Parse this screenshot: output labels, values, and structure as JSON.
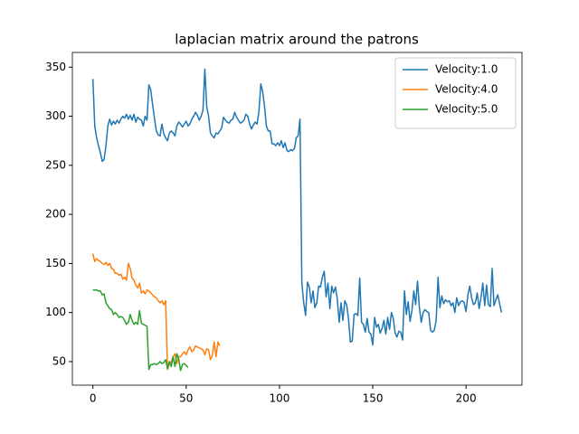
{
  "chart_data": {
    "type": "line",
    "title": "laplacian matrix around the patrons",
    "xlim": [
      -11,
      230
    ],
    "xticks": [
      0,
      50,
      100,
      150,
      200
    ],
    "ylim": [
      26,
      365
    ],
    "yticks": [
      50,
      100,
      150,
      200,
      250,
      300,
      350
    ],
    "legend": "upper right",
    "series": [
      {
        "name": "Velocity:1.0",
        "color": "#1f77b4",
        "x": [
          0,
          1,
          2,
          3,
          4,
          5,
          6,
          7,
          8,
          9,
          10,
          11,
          12,
          13,
          14,
          15,
          16,
          17,
          18,
          19,
          20,
          21,
          22,
          23,
          24,
          25,
          26,
          27,
          28,
          29,
          30,
          31,
          32,
          33,
          34,
          35,
          36,
          37,
          38,
          39,
          40,
          41,
          42,
          43,
          44,
          45,
          46,
          47,
          48,
          49,
          50,
          51,
          52,
          53,
          54,
          55,
          56,
          57,
          58,
          59,
          60,
          61,
          62,
          63,
          64,
          65,
          66,
          67,
          68,
          69,
          70,
          71,
          72,
          73,
          74,
          75,
          76,
          77,
          78,
          79,
          80,
          81,
          82,
          83,
          84,
          85,
          86,
          87,
          88,
          89,
          90,
          91,
          92,
          93,
          94,
          95,
          96,
          97,
          98,
          99,
          100,
          101,
          102,
          103,
          104,
          105,
          106,
          107,
          108,
          109,
          110,
          111,
          112,
          113,
          114,
          115,
          116,
          117,
          118,
          119,
          120,
          121,
          122,
          123,
          124,
          125,
          126,
          127,
          128,
          129,
          130,
          131,
          132,
          133,
          134,
          135,
          136,
          137,
          138,
          139,
          140,
          141,
          142,
          143,
          144,
          145,
          146,
          147,
          148,
          149,
          150,
          151,
          152,
          153,
          154,
          155,
          156,
          157,
          158,
          159,
          160,
          161,
          162,
          163,
          164,
          165,
          166,
          167,
          168,
          169,
          170,
          171,
          172,
          173,
          174,
          175,
          176,
          177,
          178,
          179,
          180,
          181,
          182,
          183,
          184,
          185,
          186,
          187,
          188,
          189,
          190,
          191,
          192,
          193,
          194,
          195,
          196,
          197,
          198,
          199,
          200,
          201,
          202,
          203,
          204,
          205,
          206,
          207,
          208,
          209,
          210,
          211,
          212,
          213,
          214,
          215,
          216,
          217,
          218,
          219
        ],
        "values": [
          338,
          290,
          278,
          270,
          263,
          254,
          256,
          270,
          290,
          297,
          291,
          295,
          292,
          296,
          293,
          297,
          300,
          298,
          302,
          297,
          301,
          296,
          302,
          294,
          299,
          297,
          296,
          290,
          300,
          296,
          332,
          327,
          312,
          298,
          285,
          281,
          280,
          292,
          282,
          278,
          275,
          283,
          285,
          283,
          280,
          290,
          294,
          292,
          289,
          292,
          295,
          290,
          292,
          297,
          300,
          304,
          301,
          296,
          300,
          306,
          348,
          310,
          300,
          283,
          280,
          278,
          283,
          282,
          285,
          288,
          299,
          296,
          294,
          293,
          296,
          297,
          304,
          299,
          296,
          293,
          294,
          296,
          302,
          300,
          292,
          287,
          291,
          294,
          292,
          305,
          333,
          325,
          310,
          290,
          285,
          285,
          272,
          272,
          270,
          273,
          270,
          275,
          268,
          273,
          265,
          264,
          266,
          265,
          267,
          278,
          280,
          297,
          130,
          110,
          97,
          131,
          126,
          110,
          122,
          105,
          110,
          127,
          126,
          136,
          142,
          116,
          130,
          104,
          127,
          120,
          126,
          114,
          90,
          110,
          92,
          112,
          108,
          94,
          70,
          71,
          98,
          99,
          97,
          135,
          90,
          88,
          80,
          94,
          80,
          78,
          67,
          95,
          85,
          88,
          79,
          84,
          92,
          78,
          95,
          83,
          100,
          94,
          79,
          75,
          81,
          80,
          72,
          122,
          98,
          111,
          91,
          102,
          122,
          108,
          132,
          105,
          90,
          100,
          103,
          101,
          100,
          82,
          80,
          82,
          92,
          136,
          105,
          117,
          109,
          113,
          111,
          112,
          107,
          110,
          100,
          115,
          107,
          111,
          112,
          110,
          101,
          118,
          127,
          115,
          108,
          110,
          120,
          104,
          115,
          130,
          107,
          128,
          108,
          106,
          145,
          107,
          113,
          118,
          109,
          100
        ]
      },
      {
        "name": "Velocity:4.0",
        "color": "#ff7f0e",
        "x": [
          0,
          1,
          2,
          3,
          4,
          5,
          6,
          7,
          8,
          9,
          10,
          11,
          12,
          13,
          14,
          15,
          16,
          17,
          18,
          19,
          20,
          21,
          22,
          23,
          24,
          25,
          26,
          27,
          28,
          29,
          30,
          31,
          32,
          33,
          34,
          35,
          36,
          37,
          38,
          39,
          40,
          41,
          42,
          43,
          44,
          45,
          46,
          47,
          48,
          49,
          50,
          51,
          52,
          53,
          54,
          55,
          56,
          57,
          58,
          59,
          60,
          61,
          62,
          63,
          64,
          65,
          66,
          67,
          68
        ],
        "values": [
          160,
          152,
          155,
          153,
          152,
          150,
          149,
          151,
          148,
          150,
          145,
          144,
          140,
          140,
          138,
          139,
          134,
          136,
          133,
          150,
          145,
          135,
          133,
          128,
          125,
          130,
          120,
          122,
          119,
          123,
          122,
          120,
          118,
          116,
          115,
          112,
          110,
          112,
          108,
          112,
          42,
          48,
          50,
          55,
          58,
          48,
          55,
          55,
          58,
          60,
          57,
          62,
          65,
          60,
          62,
          66,
          65,
          64,
          63,
          62,
          57,
          63,
          62,
          52,
          56,
          70,
          55,
          70,
          66
        ]
      },
      {
        "name": "Velocity:5.0",
        "color": "#2ca02c",
        "x": [
          0,
          1,
          2,
          3,
          4,
          5,
          6,
          7,
          8,
          9,
          10,
          11,
          12,
          13,
          14,
          15,
          16,
          17,
          18,
          19,
          20,
          21,
          22,
          23,
          24,
          25,
          26,
          27,
          28,
          29,
          30,
          31,
          32,
          33,
          34,
          35,
          36,
          37,
          38,
          39,
          40,
          41,
          42,
          43,
          44,
          45,
          46,
          47,
          48,
          49,
          50,
          51
        ],
        "values": [
          123,
          123,
          123,
          122,
          122,
          118,
          119,
          110,
          107,
          104,
          103,
          98,
          100,
          98,
          95,
          96,
          95,
          92,
          88,
          90,
          98,
          92,
          88,
          90,
          88,
          102,
          89,
          88,
          87,
          86,
          42,
          47,
          47,
          48,
          47,
          48,
          50,
          48,
          49,
          52,
          43,
          50,
          45,
          55,
          45,
          58,
          53,
          41,
          47,
          48,
          46,
          44
        ]
      }
    ]
  }
}
